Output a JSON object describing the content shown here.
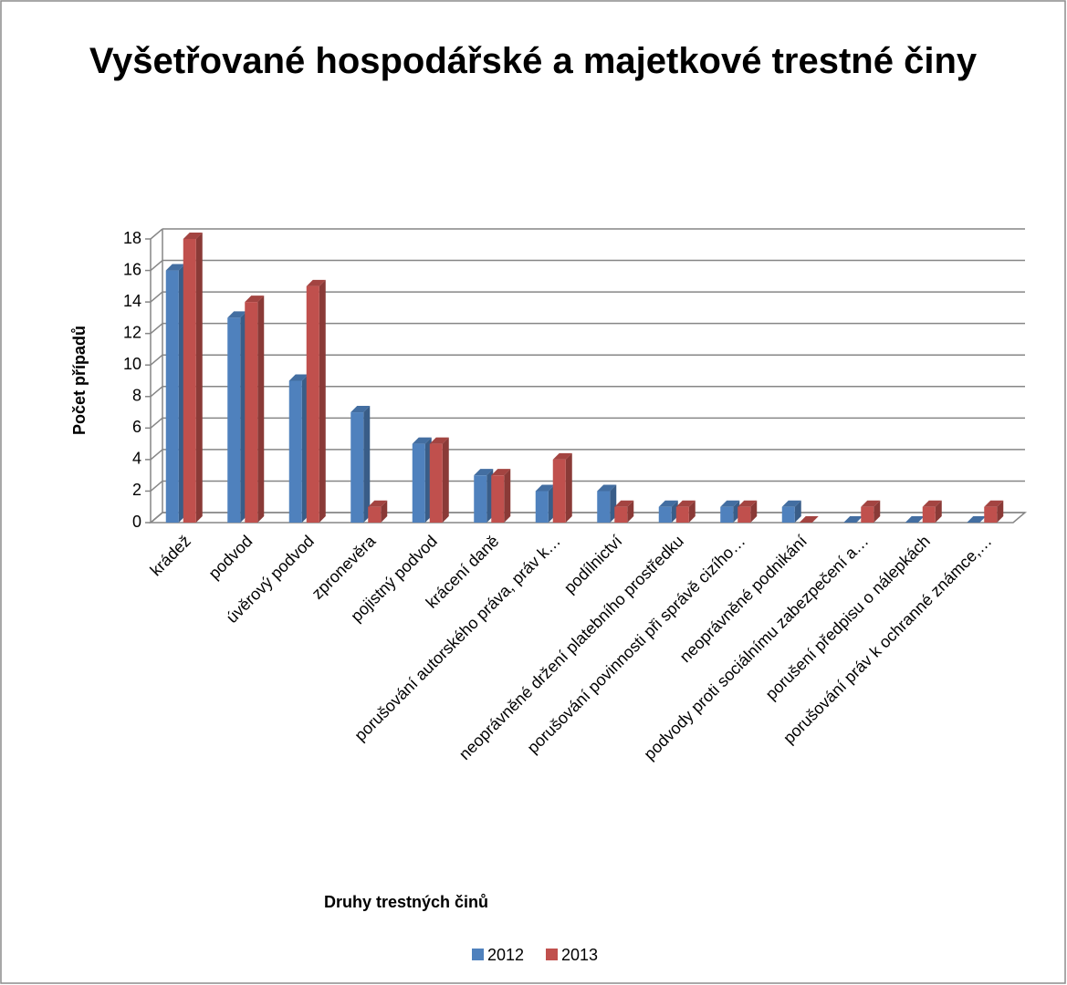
{
  "chart_data": {
    "type": "bar3d",
    "title": "Vyšetřované hospodářské a majetkové trestné činy",
    "y_label": "Počet případů",
    "x_label": "Druhy trestných činů",
    "categories": [
      "krádež",
      "podvod",
      "úvěrový podvod",
      "zpronevěra",
      "pojistný podvod",
      "krácení daně",
      "porušování autorského práva, práv k…",
      "podílnictví",
      "neoprávněné držení platebního prostředku",
      "porušování povinnosti při správě cizího…",
      "neoprávněné podnikání",
      "podvody proti sociálnímu zabezpečení a…",
      "porušení předpisu o nálepkách",
      "porušování práv k ochranné známce,…"
    ],
    "series": [
      {
        "name": "2012",
        "color": "#4f81bd",
        "values": [
          16,
          13,
          9,
          7,
          5,
          3,
          2,
          2,
          1,
          1,
          1,
          0,
          0,
          0
        ]
      },
      {
        "name": "2013",
        "color": "#c0504d",
        "values": [
          18,
          14,
          15,
          1,
          5,
          3,
          4,
          1,
          1,
          1,
          0,
          1,
          1,
          1
        ]
      }
    ],
    "ylim": [
      0,
      18
    ],
    "yticks": [
      0,
      2,
      4,
      6,
      8,
      10,
      12,
      14,
      16,
      18
    ],
    "grid": true,
    "legend": "bottom"
  }
}
